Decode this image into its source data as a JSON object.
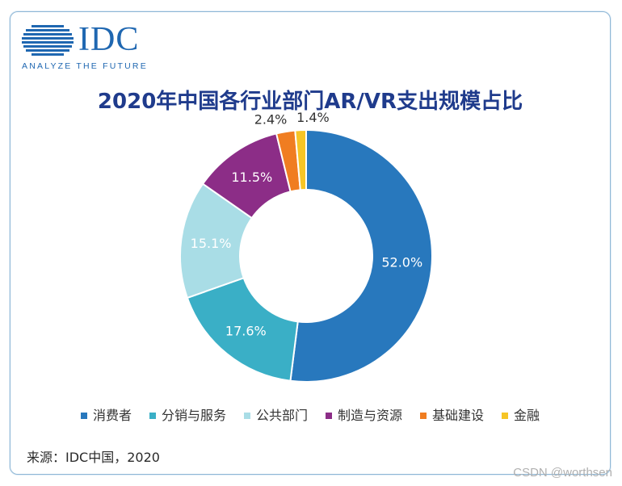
{
  "logo": {
    "brand": "IDC",
    "tagline": "ANALYZE THE FUTURE"
  },
  "source_note": "来源：IDC中国，2020",
  "watermark": "CSDN @worthsen",
  "chart_data": {
    "type": "pie",
    "variant": "donut",
    "title": "2020年中国各行业部门AR/VR支出规模占比",
    "legend_position": "bottom",
    "slices": [
      {
        "label": "消费者",
        "value": 52.0,
        "display": "52.0%",
        "color": "#2878bd"
      },
      {
        "label": "分销与服务",
        "value": 17.6,
        "display": "17.6%",
        "color": "#3aafc6"
      },
      {
        "label": "公共部门",
        "value": 15.1,
        "display": "15.1%",
        "color": "#a9dde6"
      },
      {
        "label": "制造与资源",
        "value": 11.5,
        "display": "11.5%",
        "color": "#8c2d87"
      },
      {
        "label": "基础建设",
        "value": 2.4,
        "display": "2.4%",
        "color": "#f07d21"
      },
      {
        "label": "金融",
        "value": 1.4,
        "display": "1.4%",
        "color": "#f6c526"
      }
    ]
  }
}
